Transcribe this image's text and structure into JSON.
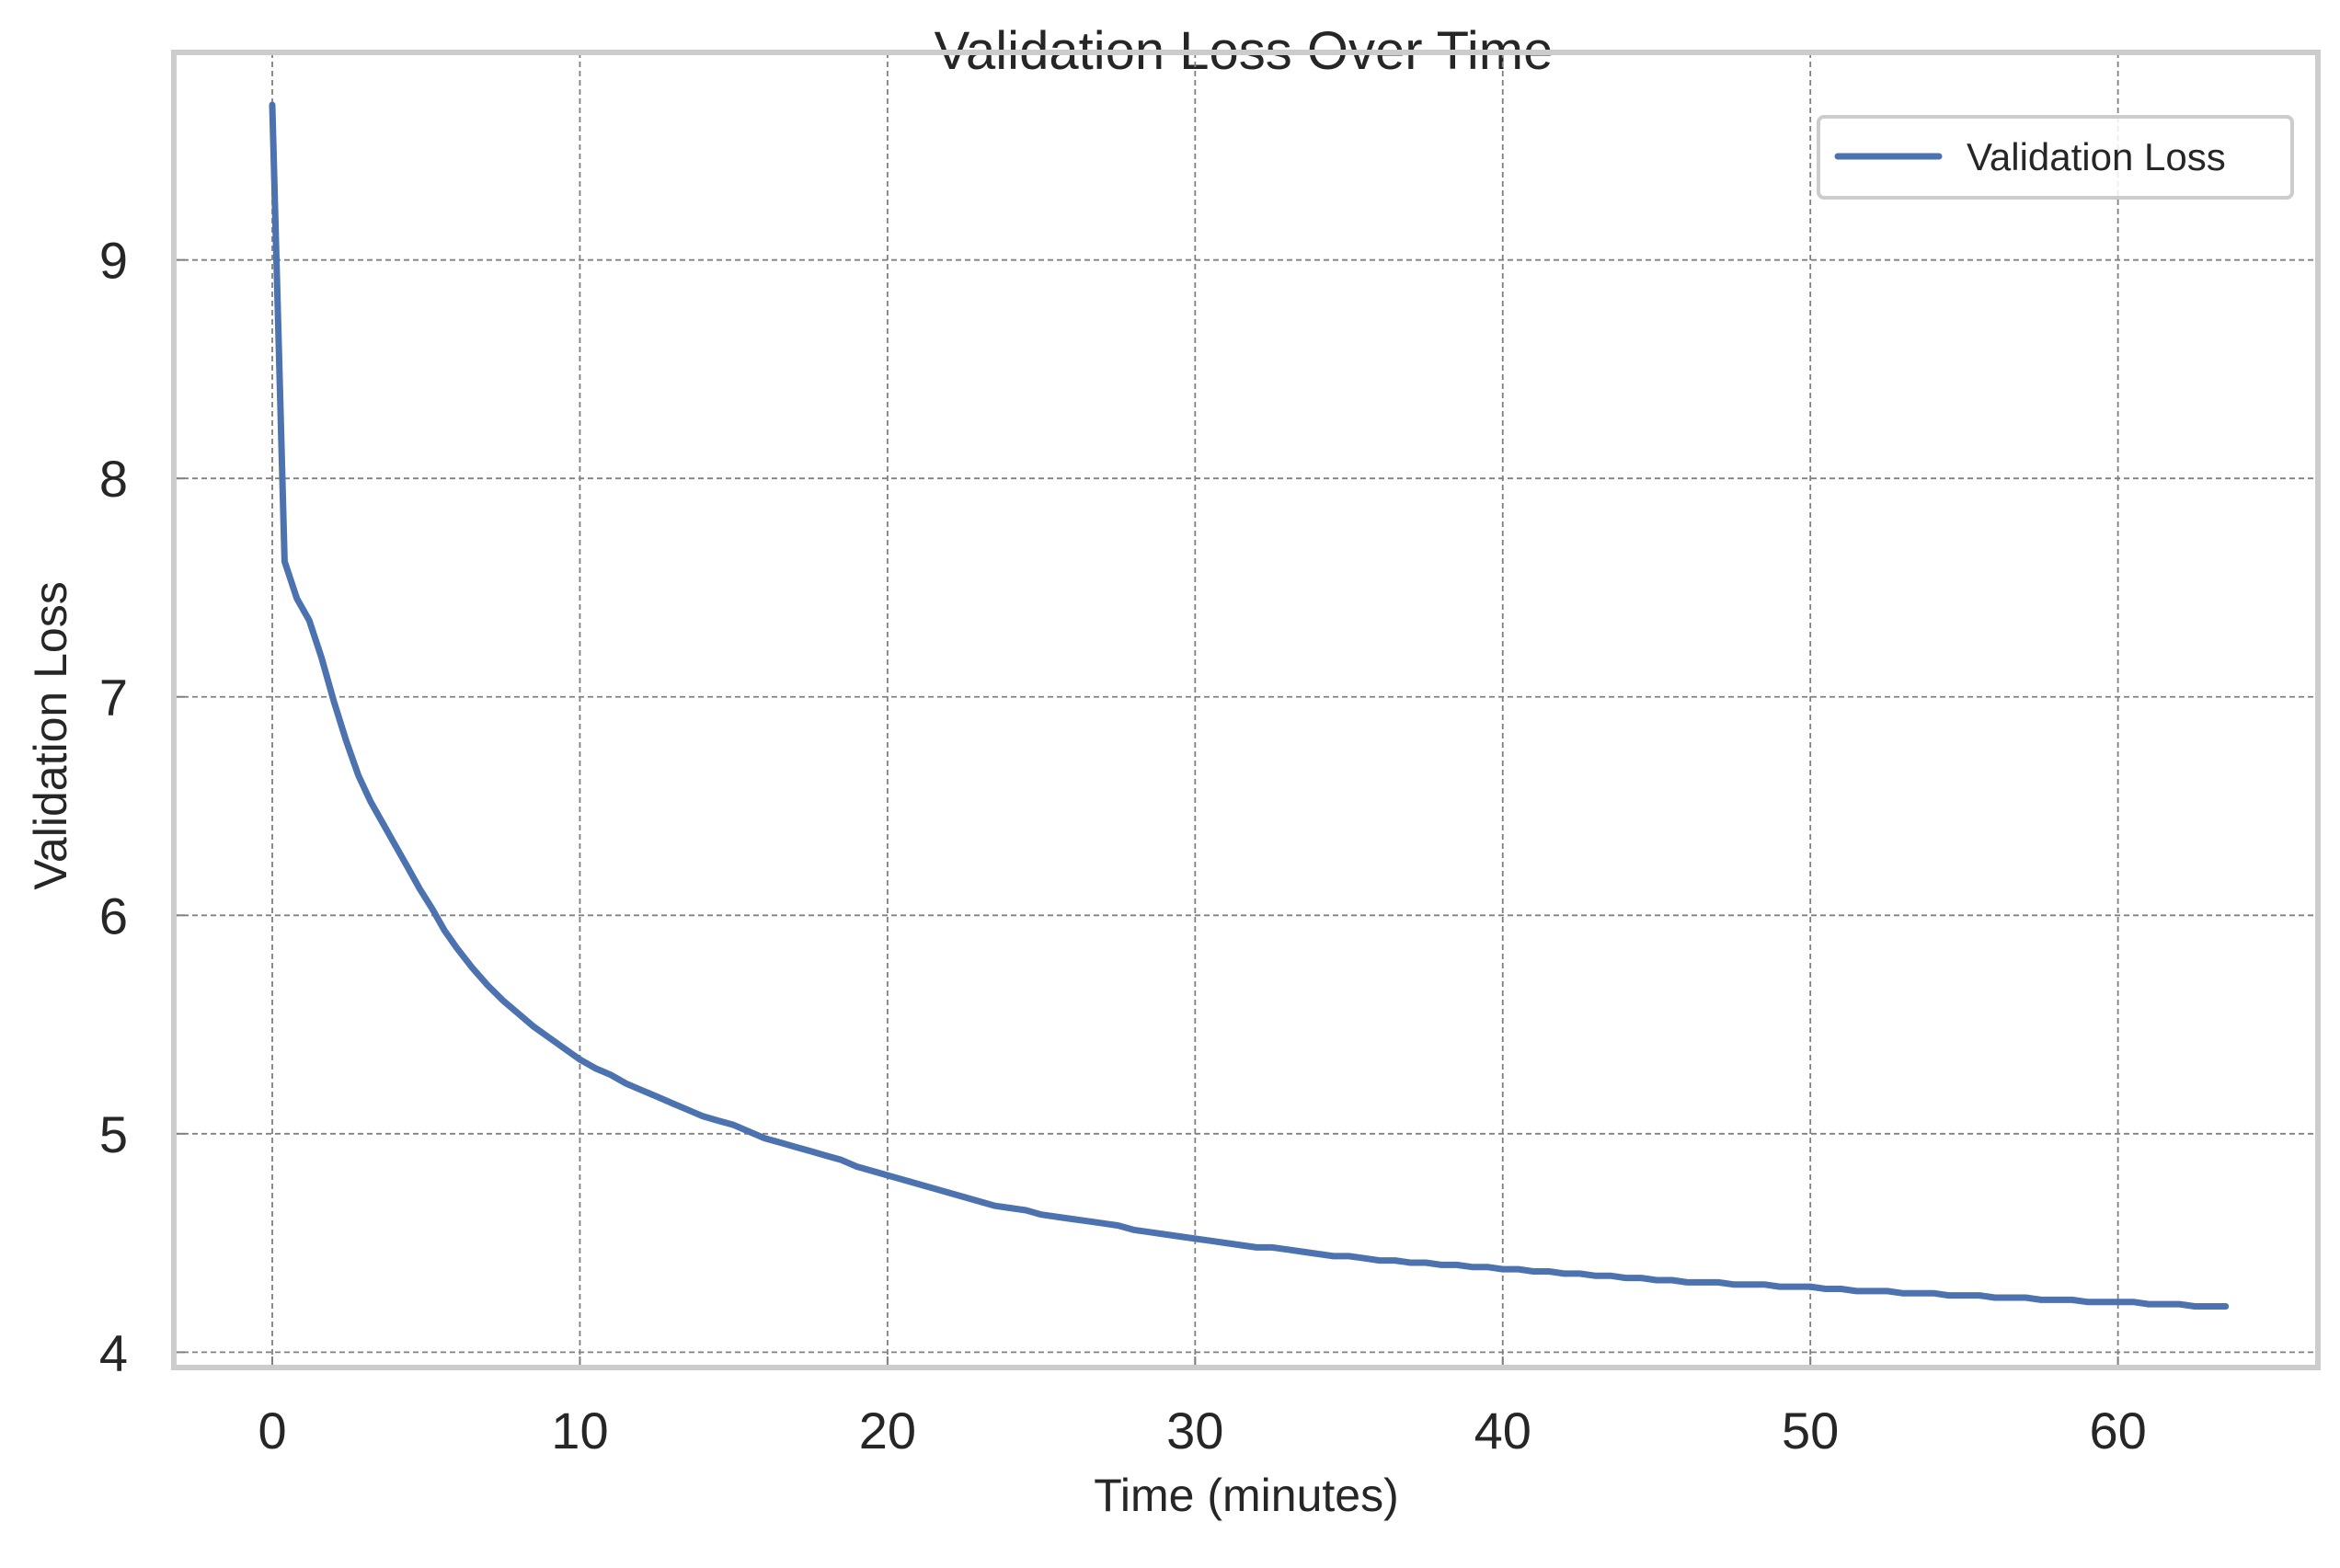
{
  "chart_data": {
    "type": "line",
    "title": "Validation Loss Over Time",
    "xlabel": "Time (minutes)",
    "ylabel": "Validation Loss",
    "xlim": [
      -3.2,
      66.5
    ],
    "ylim": [
      3.93,
      9.95
    ],
    "xticks": [
      0,
      10,
      20,
      30,
      40,
      50,
      60
    ],
    "yticks": [
      4,
      5,
      6,
      7,
      8,
      9
    ],
    "grid": true,
    "legend_position": "top-right",
    "colors": {
      "line": "#4c72b0",
      "frame": "#cccccc",
      "grid": "#808080"
    },
    "series": [
      {
        "name": "Validation Loss",
        "x": [
          0,
          0.4,
          0.8,
          1.2,
          1.6,
          2.0,
          2.4,
          2.8,
          3.2,
          3.6,
          4.0,
          4.4,
          4.8,
          5.2,
          5.6,
          6.0,
          6.5,
          7.0,
          7.5,
          8.0,
          8.5,
          9.0,
          9.5,
          10.0,
          10.5,
          11.0,
          11.5,
          12.0,
          12.5,
          13.0,
          13.5,
          14.0,
          14.5,
          15.0,
          15.5,
          16.0,
          16.5,
          17.0,
          17.5,
          18.0,
          18.5,
          19.0,
          19.5,
          20.0,
          20.5,
          21.0,
          21.5,
          22.0,
          22.5,
          23.0,
          23.5,
          24.0,
          24.5,
          25.0,
          25.5,
          26.0,
          26.5,
          27.0,
          27.5,
          28.0,
          28.5,
          29.0,
          29.5,
          30.0,
          30.5,
          31.0,
          31.5,
          32.0,
          32.5,
          33.0,
          33.5,
          34.0,
          34.5,
          35.0,
          35.5,
          36.0,
          36.5,
          37.0,
          37.5,
          38.0,
          38.5,
          39.0,
          39.5,
          40.0,
          40.5,
          41.0,
          41.5,
          42.0,
          42.5,
          43.0,
          43.5,
          44.0,
          44.5,
          45.0,
          45.5,
          46.0,
          46.5,
          47.0,
          47.5,
          48.0,
          48.5,
          49.0,
          49.5,
          50.0,
          50.5,
          51.0,
          51.5,
          52.0,
          52.5,
          53.0,
          53.5,
          54.0,
          54.5,
          55.0,
          55.5,
          56.0,
          56.5,
          57.0,
          57.5,
          58.0,
          58.5,
          59.0,
          59.5,
          60.0,
          60.5,
          61.0,
          61.5,
          62.0,
          62.5,
          63.0,
          63.5
        ],
        "y": [
          9.71,
          7.62,
          7.45,
          7.35,
          7.18,
          6.98,
          6.8,
          6.64,
          6.52,
          6.42,
          6.32,
          6.22,
          6.12,
          6.03,
          5.93,
          5.85,
          5.76,
          5.68,
          5.61,
          5.55,
          5.49,
          5.44,
          5.39,
          5.34,
          5.3,
          5.27,
          5.23,
          5.2,
          5.17,
          5.14,
          5.11,
          5.08,
          5.06,
          5.04,
          5.01,
          4.98,
          4.96,
          4.94,
          4.92,
          4.9,
          4.88,
          4.85,
          4.83,
          4.81,
          4.79,
          4.77,
          4.75,
          4.73,
          4.71,
          4.69,
          4.67,
          4.66,
          4.65,
          4.63,
          4.62,
          4.61,
          4.6,
          4.59,
          4.58,
          4.56,
          4.55,
          4.54,
          4.53,
          4.52,
          4.51,
          4.5,
          4.49,
          4.48,
          4.48,
          4.47,
          4.46,
          4.45,
          4.44,
          4.44,
          4.43,
          4.42,
          4.42,
          4.41,
          4.41,
          4.4,
          4.4,
          4.39,
          4.39,
          4.38,
          4.38,
          4.37,
          4.37,
          4.36,
          4.36,
          4.35,
          4.35,
          4.34,
          4.34,
          4.33,
          4.33,
          4.32,
          4.32,
          4.32,
          4.31,
          4.31,
          4.31,
          4.3,
          4.3,
          4.3,
          4.29,
          4.29,
          4.28,
          4.28,
          4.28,
          4.27,
          4.27,
          4.27,
          4.26,
          4.26,
          4.26,
          4.25,
          4.25,
          4.25,
          4.24,
          4.24,
          4.24,
          4.23,
          4.23,
          4.23,
          4.23,
          4.22,
          4.22,
          4.22,
          4.21,
          4.21,
          4.21
        ]
      }
    ]
  }
}
